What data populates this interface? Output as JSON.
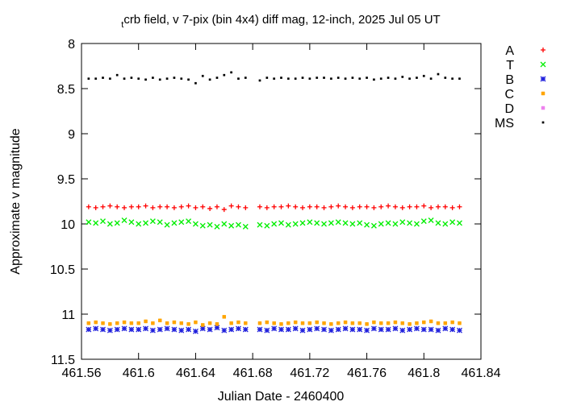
{
  "chart_data": {
    "type": "scatter",
    "title": [
      "t",
      "crb field, v 7-pix (bin 4x4) diff mag, 12-inch, 2025 Jul 05 UT"
    ],
    "x_label": "Julian Date - 2460400",
    "y_label": "Approximate v magnitude",
    "xlim": [
      461.56,
      461.84
    ],
    "xticks": [
      461.56,
      461.6,
      461.64,
      461.68,
      461.72,
      461.76,
      461.8,
      461.84
    ],
    "ylim": [
      8,
      11.5
    ],
    "y_reversed": true,
    "yticks": [
      8,
      8.5,
      9,
      9.5,
      10,
      10.5,
      11,
      11.5
    ],
    "legend": "outside-right",
    "x": [
      461.565,
      461.57,
      461.575,
      461.58,
      461.585,
      461.59,
      461.595,
      461.6,
      461.605,
      461.61,
      461.615,
      461.62,
      461.625,
      461.63,
      461.635,
      461.64,
      461.645,
      461.65,
      461.655,
      461.66,
      461.665,
      461.67,
      461.675,
      461.685,
      461.69,
      461.695,
      461.7,
      461.705,
      461.71,
      461.715,
      461.72,
      461.725,
      461.73,
      461.735,
      461.74,
      461.745,
      461.75,
      461.755,
      461.76,
      461.765,
      461.77,
      461.775,
      461.78,
      461.785,
      461.79,
      461.795,
      461.8,
      461.805,
      461.81,
      461.815,
      461.82,
      461.825
    ],
    "series": [
      {
        "name": "A",
        "color": "#ff0000",
        "marker": "plus",
        "values": [
          9.81,
          9.82,
          9.81,
          9.8,
          9.81,
          9.82,
          9.81,
          9.81,
          9.8,
          9.82,
          9.81,
          9.81,
          9.82,
          9.81,
          9.8,
          9.82,
          9.81,
          9.83,
          9.81,
          9.84,
          9.8,
          9.81,
          9.82,
          9.81,
          9.82,
          9.81,
          9.81,
          9.8,
          9.81,
          9.82,
          9.81,
          9.81,
          9.82,
          9.81,
          9.8,
          9.81,
          9.82,
          9.81,
          9.81,
          9.82,
          9.81,
          9.8,
          9.81,
          9.82,
          9.81,
          9.81,
          9.8,
          9.82,
          9.81,
          9.81,
          9.82,
          9.81
        ]
      },
      {
        "name": "T",
        "color": "#00ee00",
        "marker": "cross",
        "values": [
          9.98,
          9.99,
          9.97,
          10.0,
          9.99,
          9.96,
          9.98,
          10.0,
          9.99,
          9.97,
          9.98,
          10.01,
          9.99,
          9.98,
          9.97,
          10.0,
          10.02,
          10.01,
          10.03,
          10.0,
          10.02,
          10.01,
          10.03,
          10.01,
          10.02,
          10.0,
          9.99,
          10.01,
          10.0,
          9.99,
          9.98,
          9.99,
          10.0,
          9.99,
          9.98,
          9.99,
          10.0,
          9.99,
          10.01,
          10.02,
          10.0,
          9.99,
          10.0,
          9.98,
          9.99,
          10.0,
          9.97,
          9.96,
          9.99,
          10.0,
          9.98,
          9.99
        ]
      },
      {
        "name": "B",
        "color": "#2020dd",
        "marker": "star",
        "values": [
          11.17,
          11.16,
          11.17,
          11.18,
          11.17,
          11.16,
          11.17,
          11.17,
          11.16,
          11.18,
          11.17,
          11.16,
          11.17,
          11.18,
          11.17,
          11.19,
          11.16,
          11.17,
          11.15,
          11.18,
          11.17,
          11.16,
          11.17,
          11.17,
          11.18,
          11.16,
          11.17,
          11.17,
          11.16,
          11.18,
          11.17,
          11.16,
          11.17,
          11.18,
          11.17,
          11.16,
          11.17,
          11.17,
          11.18,
          11.16,
          11.17,
          11.17,
          11.16,
          11.18,
          11.17,
          11.16,
          11.17,
          11.17,
          11.18,
          11.16,
          11.17,
          11.18
        ]
      },
      {
        "name": "C",
        "color": "#ffa500",
        "marker": "square",
        "values": [
          11.1,
          11.09,
          11.1,
          11.11,
          11.1,
          11.09,
          11.1,
          11.1,
          11.08,
          11.1,
          11.07,
          11.1,
          11.09,
          11.1,
          11.11,
          11.09,
          11.12,
          11.1,
          11.11,
          11.03,
          11.1,
          11.09,
          11.1,
          11.1,
          11.09,
          11.1,
          11.11,
          11.1,
          11.09,
          11.1,
          11.1,
          11.09,
          11.1,
          11.11,
          11.1,
          11.09,
          11.1,
          11.1,
          11.11,
          11.09,
          11.1,
          11.1,
          11.09,
          11.1,
          11.11,
          11.1,
          11.09,
          11.08,
          11.1,
          11.1,
          11.09,
          11.1
        ]
      },
      {
        "name": "D",
        "color": "#ee82ee",
        "marker": "square",
        "values": [
          null,
          null,
          null,
          null,
          null,
          null,
          null,
          null,
          null,
          null,
          null,
          null,
          null,
          null,
          null,
          null,
          null,
          null,
          null,
          null,
          null,
          null,
          null,
          null,
          null,
          null,
          null,
          null,
          null,
          null,
          null,
          null,
          null,
          null,
          null,
          null,
          null,
          null,
          null,
          null,
          null,
          null,
          null,
          null,
          null,
          null,
          null,
          null,
          null,
          null,
          null,
          null
        ]
      },
      {
        "name": "MS",
        "color": "#000000",
        "marker": "dot",
        "values": [
          8.39,
          8.39,
          8.38,
          8.39,
          8.35,
          8.39,
          8.38,
          8.39,
          8.4,
          8.38,
          8.4,
          8.39,
          8.38,
          8.39,
          8.4,
          8.44,
          8.36,
          8.4,
          8.38,
          8.35,
          8.32,
          8.39,
          8.38,
          8.41,
          8.38,
          8.39,
          8.38,
          8.39,
          8.39,
          8.38,
          8.39,
          8.38,
          8.38,
          8.39,
          8.38,
          8.39,
          8.38,
          8.39,
          8.38,
          8.4,
          8.39,
          8.38,
          8.39,
          8.37,
          8.39,
          8.38,
          8.36,
          8.39,
          8.34,
          8.38,
          8.39,
          8.39
        ]
      }
    ]
  }
}
